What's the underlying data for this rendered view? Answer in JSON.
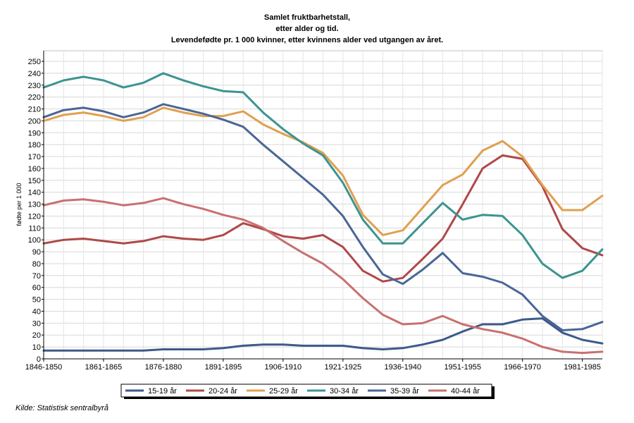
{
  "chart_data": {
    "type": "line",
    "title": [
      "Samlet fruktbarhetstall,",
      "etter alder og tid.",
      "Levendefødte pr. 1 000 kvinner, etter kvinnens alder ved utgangen av året."
    ],
    "xlabel": "",
    "ylabel": "fødte per 1 000",
    "ylim": [
      0,
      250
    ],
    "yticks": [
      0,
      10,
      20,
      30,
      40,
      50,
      60,
      70,
      80,
      90,
      100,
      110,
      120,
      130,
      140,
      150,
      160,
      170,
      180,
      190,
      200,
      210,
      220,
      230,
      240,
      250
    ],
    "categories": [
      "1846-1850",
      "1851-1855",
      "1856-1860",
      "1861-1865",
      "1866-1870",
      "1871-1875",
      "1876-1880",
      "1881-1885",
      "1886-1890",
      "1891-1895",
      "1896-1900",
      "1901-1905",
      "1906-1910",
      "1911-1915",
      "1916-1920",
      "1921-1925",
      "1926-1930",
      "1931-1935",
      "1936-1940",
      "1941-1945",
      "1946-1950",
      "1951-1955",
      "1956-1960",
      "1961-1965",
      "1966-1970",
      "1971-1975",
      "1976-1980",
      "1981-1985",
      "1986-1990"
    ],
    "xtick_labels": [
      "1846-1850",
      "1861-1865",
      "1876-1880",
      "1891-1895",
      "1906-1910",
      "1921-1925",
      "1936-1940",
      "1951-1955",
      "1966-1970",
      "1981-1985"
    ],
    "grid": true,
    "legend_position": "bottom",
    "series": [
      {
        "name": "15-19 år",
        "color": "#3d5a8a",
        "values": [
          7,
          7,
          7,
          7,
          7,
          7,
          8,
          8,
          8,
          9,
          11,
          12,
          12,
          11,
          11,
          11,
          9,
          8,
          9,
          12,
          16,
          23,
          29,
          29,
          33,
          34,
          22,
          16,
          13
        ]
      },
      {
        "name": "20-24 år",
        "color": "#b04848",
        "values": [
          97,
          100,
          101,
          99,
          97,
          99,
          103,
          101,
          100,
          104,
          114,
          109,
          103,
          101,
          104,
          94,
          74,
          65,
          68,
          84,
          101,
          130,
          160,
          171,
          168,
          145,
          109,
          93,
          87
        ]
      },
      {
        "name": "25-29 år",
        "color": "#e0a050",
        "values": [
          200,
          205,
          207,
          204,
          200,
          203,
          211,
          207,
          204,
          204,
          208,
          197,
          189,
          182,
          173,
          154,
          121,
          104,
          108,
          127,
          146,
          155,
          175,
          183,
          170,
          146,
          125,
          125,
          137
        ]
      },
      {
        "name": "30-34 år",
        "color": "#3c9490",
        "values": [
          228,
          234,
          237,
          234,
          228,
          232,
          240,
          234,
          229,
          225,
          224,
          207,
          193,
          181,
          171,
          148,
          117,
          97,
          97,
          114,
          131,
          117,
          121,
          120,
          104,
          80,
          68,
          74,
          92
        ]
      },
      {
        "name": "35-39 år",
        "color": "#4a6696",
        "values": [
          203,
          209,
          211,
          208,
          203,
          207,
          214,
          210,
          206,
          201,
          195,
          180,
          166,
          152,
          138,
          120,
          94,
          71,
          63,
          75,
          89,
          72,
          69,
          64,
          54,
          36,
          24,
          25,
          31
        ]
      },
      {
        "name": "40-44 år",
        "color": "#c87070",
        "values": [
          129,
          133,
          134,
          132,
          129,
          131,
          135,
          130,
          126,
          121,
          117,
          110,
          99,
          89,
          80,
          67,
          51,
          37,
          29,
          30,
          36,
          29,
          25,
          22,
          17,
          10,
          6,
          5,
          6
        ]
      }
    ],
    "source": "Kilde: Statistisk sentralbyrå"
  }
}
